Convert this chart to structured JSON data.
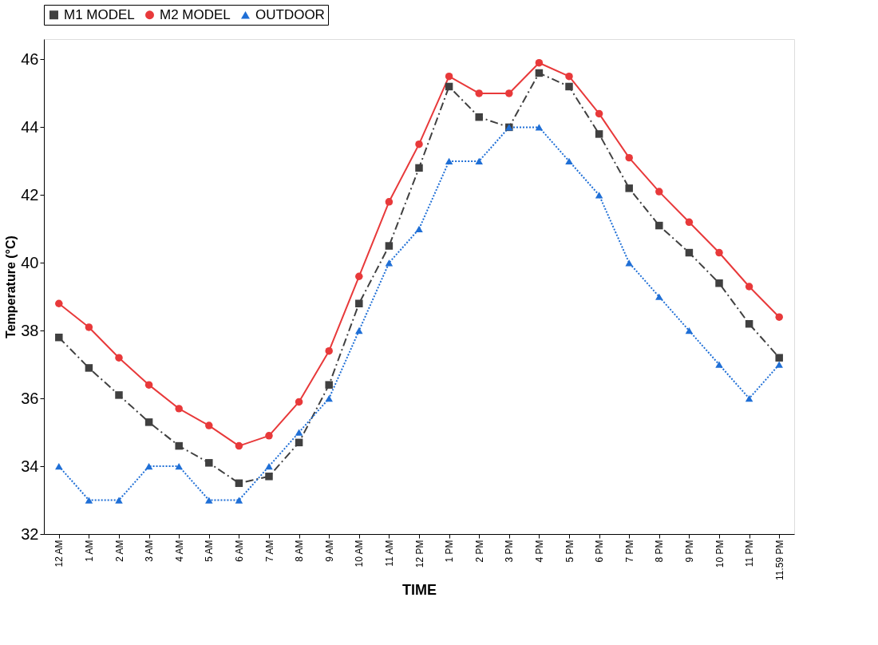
{
  "chart_data": {
    "type": "line",
    "xlabel": "TIME",
    "ylabel": "Temperature (°C)",
    "categories": [
      "12 AM",
      "1 AM",
      "2 AM",
      "3 AM",
      "4 AM",
      "5 AM",
      "6 AM",
      "7 AM",
      "8 AM",
      "9 AM",
      "10 AM",
      "11 AM",
      "12 PM",
      "1 PM",
      "2 PM",
      "3 PM",
      "4 PM",
      "5 PM",
      "6 PM",
      "7 PM",
      "8 PM",
      "9 PM",
      "10 PM",
      "11 PM",
      "11.59 PM"
    ],
    "series": [
      {
        "name": "M1 MODEL",
        "color": "#404040",
        "marker": "square",
        "line_style": "dashed",
        "values": [
          37.8,
          36.9,
          36.1,
          35.3,
          34.6,
          34.1,
          33.5,
          33.7,
          34.7,
          36.4,
          38.8,
          40.5,
          42.8,
          45.2,
          44.3,
          44.0,
          45.6,
          45.2,
          43.8,
          42.2,
          41.1,
          40.3,
          39.4,
          38.2,
          37.2
        ]
      },
      {
        "name": "M2 MODEL",
        "color": "#e8393a",
        "marker": "circle",
        "line_style": "solid",
        "values": [
          38.8,
          38.1,
          37.2,
          36.4,
          35.7,
          35.2,
          34.6,
          34.9,
          35.9,
          37.4,
          39.6,
          41.8,
          43.5,
          45.5,
          45.0,
          45.0,
          45.9,
          45.5,
          44.4,
          43.1,
          42.1,
          41.2,
          40.3,
          39.3,
          38.4
        ]
      },
      {
        "name": "OUTDOOR",
        "color": "#1f6fd6",
        "marker": "triangle",
        "line_style": "dotted",
        "values": [
          34,
          33,
          33,
          34,
          34,
          33,
          33,
          34,
          35,
          36,
          38,
          40,
          41,
          43,
          43,
          44,
          44,
          43,
          42,
          40,
          39,
          38,
          37,
          36,
          37
        ]
      }
    ],
    "ylim": [
      32,
      46.6
    ],
    "yticks": [
      32,
      34,
      36,
      38,
      40,
      42,
      44,
      46
    ],
    "grid": false,
    "legend": "top"
  }
}
